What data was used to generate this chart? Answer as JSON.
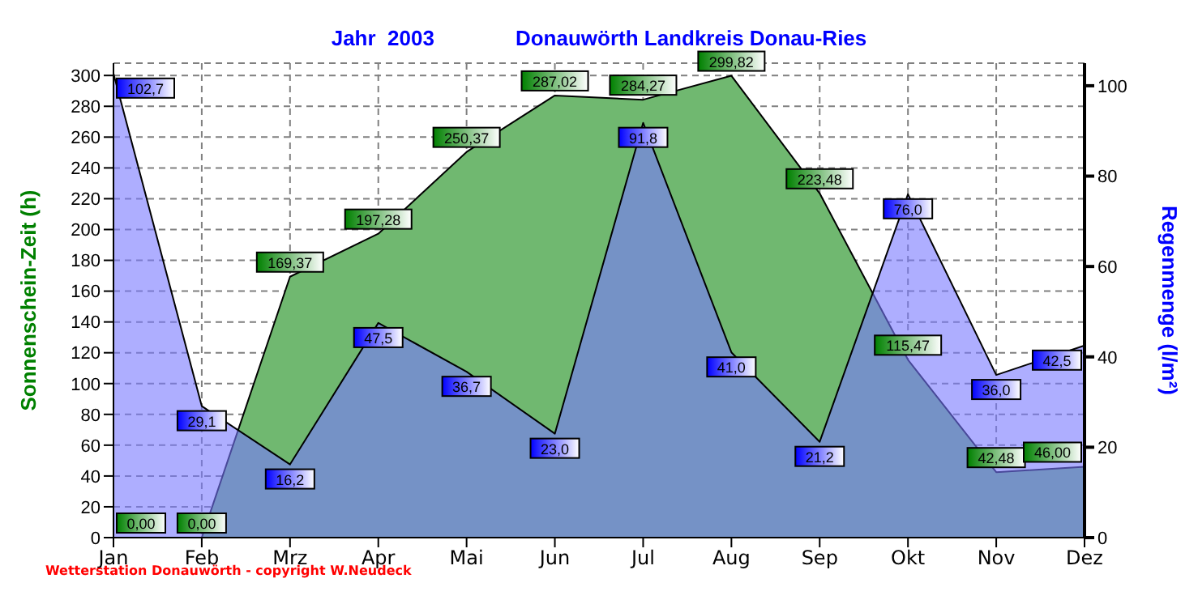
{
  "chart_data": {
    "type": "area",
    "title": "Jahr  2003",
    "subtitle": "Donauwörth Landkreis Donau-Ries",
    "ylabel": "Sonnenschein-Zeit  (h)",
    "y2label": "Regenmenge  (l/m²)",
    "categories": [
      "Jan",
      "Feb",
      "Mrz",
      "Apr",
      "Mai",
      "Jun",
      "Jul",
      "Aug",
      "Sep",
      "Okt",
      "Nov",
      "Dez"
    ],
    "series": [
      {
        "color": "#70b870",
        "values": [
          0.0,
          0.0,
          169.37,
          197.28,
          250.37,
          287.02,
          284.27,
          299.82,
          223.48,
          115.47,
          42.48,
          46.0
        ],
        "value_labels": [
          "0,00",
          "0,00",
          "169,37",
          "197,28",
          "250,37",
          "287,02",
          "284,27",
          "299,82",
          "223,48",
          "115,47",
          "42,48",
          "46,00"
        ]
      },
      {
        "color": "#7878ff",
        "axis": "y2",
        "values": [
          102.7,
          29.1,
          16.2,
          47.5,
          36.7,
          23.0,
          91.8,
          41.0,
          21.2,
          76.0,
          36.0,
          42.5
        ],
        "value_labels": [
          "102,7",
          "29,1",
          "16,2",
          "47,5",
          "36,7",
          "23,0",
          "91,8",
          "41,0",
          "21,2",
          "76,0",
          "36,0",
          "42,5"
        ]
      }
    ],
    "ylim": [
      0,
      308
    ],
    "yticks": [
      0,
      20,
      40,
      60,
      80,
      100,
      120,
      140,
      160,
      180,
      200,
      220,
      240,
      260,
      280,
      300
    ],
    "y2lim": [
      0,
      105
    ],
    "y2ticks": [
      0,
      20,
      40,
      60,
      80,
      100
    ],
    "grid": true,
    "legend": false,
    "annotations": [
      "Wetterstation Donauwörth - copyright W.Neudeck"
    ]
  }
}
